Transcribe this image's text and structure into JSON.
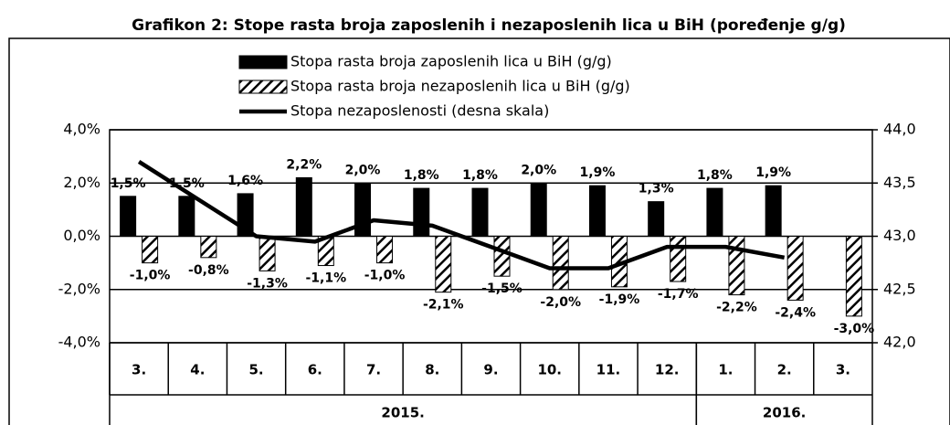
{
  "chart_data": {
    "type": "bar",
    "title": "Grafikon 2: Stope rasta broja zaposlenih i nezaposlenih lica u BiH (poređenje g/g)",
    "categories": [
      "3.",
      "4.",
      "5.",
      "6.",
      "7.",
      "8.",
      "9.",
      "10.",
      "11.",
      "12.",
      "1.",
      "2.",
      "3."
    ],
    "x_groups": [
      {
        "label": "2015.",
        "count": 10
      },
      {
        "label": "2016.",
        "count": 3
      }
    ],
    "series": [
      {
        "name": "Stopa rasta broja zaposlenih lica u BiH (g/g)",
        "type": "bar",
        "color": "#000000",
        "hatch": false,
        "values": [
          1.5,
          1.5,
          1.6,
          2.2,
          2.0,
          1.8,
          1.8,
          2.0,
          1.9,
          1.3,
          1.8,
          1.9,
          null
        ],
        "value_labels": [
          "1,5%",
          "1,5%",
          "1,6%",
          "2,2%",
          "2,0%",
          "1,8%",
          "1,8%",
          "2,0%",
          "1,9%",
          "1,3%",
          "1,8%",
          "1,9%",
          null
        ]
      },
      {
        "name": "Stopa rasta broja nezaposlenih lica u BiH (g/g)",
        "type": "bar",
        "color": "#000000",
        "hatch": true,
        "values": [
          -1.0,
          -0.8,
          -1.3,
          -1.1,
          -1.0,
          -2.1,
          -1.5,
          -2.0,
          -1.9,
          -1.7,
          -2.2,
          -2.4,
          -3.0
        ],
        "value_labels": [
          "-1,0%",
          "-0,8%",
          "-1,3%",
          "-1,1%",
          "-1,0%",
          "-2,1%",
          "-1,5%",
          "-2,0%",
          "-1,9%",
          "-1,7%",
          "-2,2%",
          "-2,4%",
          "-3,0%"
        ]
      },
      {
        "name": "Stopa nezaposlenosti (desna skala)",
        "type": "line",
        "color": "#000000",
        "axis": "y2",
        "values": [
          43.7,
          43.35,
          43.0,
          42.95,
          43.15,
          43.1,
          42.9,
          42.7,
          42.7,
          42.9,
          42.9,
          42.8,
          null
        ]
      }
    ],
    "ylim": [
      -4,
      4
    ],
    "yticks": [
      {
        "value": -4,
        "label": "-4,0%"
      },
      {
        "value": -2,
        "label": "-2,0%"
      },
      {
        "value": 0,
        "label": "0,0%"
      },
      {
        "value": 2,
        "label": "2,0%"
      },
      {
        "value": 4,
        "label": "4,0%"
      }
    ],
    "y2lim": [
      42,
      44
    ],
    "y2ticks": [
      {
        "value": 42,
        "label": "42,0"
      },
      {
        "value": 42.5,
        "label": "42,5"
      },
      {
        "value": 43,
        "label": "43,0"
      },
      {
        "value": 43.5,
        "label": "43,5"
      },
      {
        "value": 44,
        "label": "44,0"
      }
    ],
    "grid": true,
    "legend": "top"
  }
}
